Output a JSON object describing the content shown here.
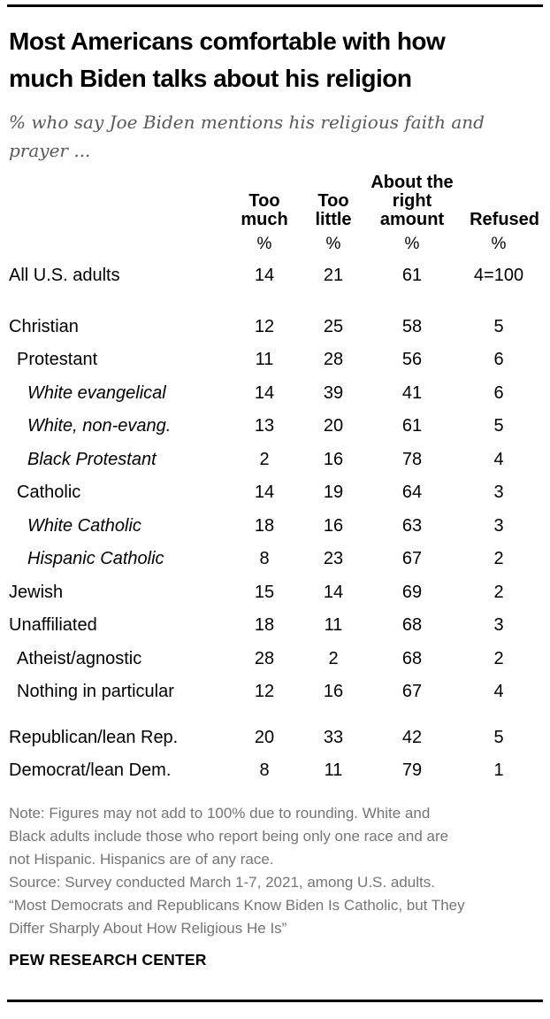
{
  "chart_data": {
    "type": "table",
    "title": "Most Americans comfortable with how much Biden talks about his religion",
    "title_lines": [
      "Most Americans comfortable with how",
      "much Biden talks about his religion"
    ],
    "subtitle": "% who say Joe Biden mentions his religious faith and prayer ...",
    "subtitle_lines": [
      "% who say Joe Biden mentions his religious faith and",
      "prayer ..."
    ],
    "unit": "%",
    "columns": [
      {
        "label": "Too much",
        "lines": [
          "Too",
          "much"
        ]
      },
      {
        "label": "Too little",
        "lines": [
          "Too",
          "little"
        ]
      },
      {
        "label": "About the right amount",
        "lines": [
          "About the",
          "right",
          "amount"
        ]
      },
      {
        "label": "Refused",
        "lines": [
          "Refused"
        ]
      }
    ],
    "rows": [
      {
        "label": "All U.S. adults",
        "indent": 0,
        "italic": false,
        "values": [
          "14",
          "21",
          "61",
          "4=100"
        ]
      },
      {
        "label": "Christian",
        "indent": 0,
        "italic": false,
        "values": [
          "12",
          "25",
          "58",
          "5"
        ]
      },
      {
        "label": "Protestant",
        "indent": 1,
        "italic": false,
        "values": [
          "11",
          "28",
          "56",
          "6"
        ]
      },
      {
        "label": "White evangelical",
        "indent": 2,
        "italic": true,
        "values": [
          "14",
          "39",
          "41",
          "6"
        ]
      },
      {
        "label": "White, non-evang.",
        "indent": 2,
        "italic": true,
        "values": [
          "13",
          "20",
          "61",
          "5"
        ]
      },
      {
        "label": "Black Protestant",
        "indent": 2,
        "italic": true,
        "values": [
          "2",
          "16",
          "78",
          "4"
        ]
      },
      {
        "label": "Catholic",
        "indent": 1,
        "italic": false,
        "values": [
          "14",
          "19",
          "64",
          "3"
        ]
      },
      {
        "label": "White Catholic",
        "indent": 2,
        "italic": true,
        "values": [
          "18",
          "16",
          "63",
          "3"
        ]
      },
      {
        "label": "Hispanic Catholic",
        "indent": 2,
        "italic": true,
        "values": [
          "8",
          "23",
          "67",
          "2"
        ]
      },
      {
        "label": "Jewish",
        "indent": 0,
        "italic": false,
        "values": [
          "15",
          "14",
          "69",
          "2"
        ]
      },
      {
        "label": "Unaffiliated",
        "indent": 0,
        "italic": false,
        "values": [
          "18",
          "11",
          "68",
          "3"
        ]
      },
      {
        "label": "Atheist/agnostic",
        "indent": 1,
        "italic": false,
        "values": [
          "28",
          "2",
          "68",
          "2"
        ]
      },
      {
        "label": "Nothing in particular",
        "indent": 1,
        "italic": false,
        "values": [
          "12",
          "16",
          "67",
          "4"
        ]
      },
      {
        "label": "Republican/lean Rep.",
        "indent": 0,
        "italic": false,
        "values": [
          "20",
          "33",
          "42",
          "5"
        ]
      },
      {
        "label": "Democrat/lean Dem.",
        "indent": 0,
        "italic": false,
        "values": [
          "8",
          "11",
          "79",
          "1"
        ]
      }
    ],
    "notes_lines": [
      "Note: Figures may not add to 100% due to rounding. White and",
      "Black adults include those who report being only one race and are",
      "not Hispanic. Hispanics are of any race.",
      "Source: Survey conducted March 1-7, 2021, among U.S. adults.",
      "“Most Democrats and Republicans Know Biden Is Catholic, but They",
      "Differ Sharply About How Religious He Is”"
    ],
    "branding": "PEW RESEARCH CENTER",
    "colors": {
      "text": "#000000",
      "subtitle_gray": "#58585a",
      "note_gray": "#757575",
      "rule_black": "#000000"
    }
  }
}
